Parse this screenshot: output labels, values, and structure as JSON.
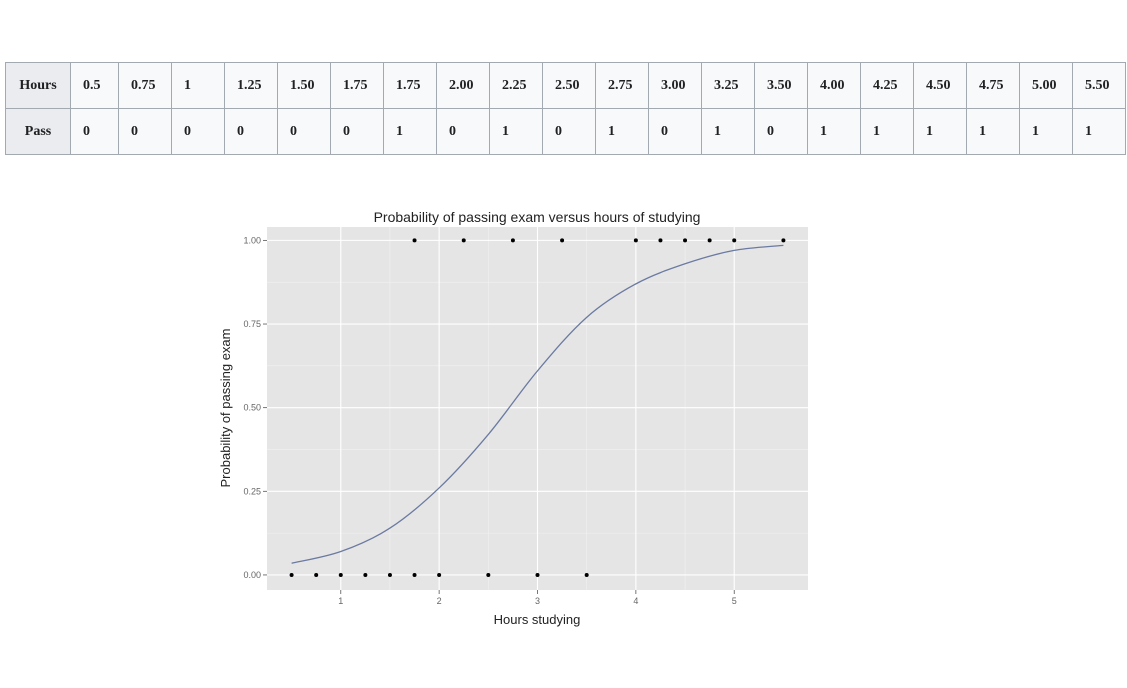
{
  "table": {
    "row_headers": [
      "Hours",
      "Pass"
    ],
    "hours": [
      "0.5",
      "0.75",
      "1",
      "1.25",
      "1.50",
      "1.75",
      "1.75",
      "2.00",
      "2.25",
      "2.50",
      "2.75",
      "3.00",
      "3.25",
      "3.50",
      "4.00",
      "4.25",
      "4.50",
      "4.75",
      "5.00",
      "5.50"
    ],
    "pass": [
      "0",
      "0",
      "0",
      "0",
      "0",
      "0",
      "1",
      "0",
      "1",
      "0",
      "1",
      "0",
      "1",
      "0",
      "1",
      "1",
      "1",
      "1",
      "1",
      "1"
    ]
  },
  "chart_data": {
    "type": "scatter",
    "title": "Probability of passing exam versus hours of studying",
    "xlabel": "Hours studying",
    "ylabel": "Probability of passing exam",
    "xlim": [
      0.25,
      5.75
    ],
    "ylim": [
      -0.045,
      1.04
    ],
    "xticks": [
      1,
      2,
      3,
      4,
      5
    ],
    "xtick_labels": [
      "1",
      "2",
      "3",
      "4",
      "5"
    ],
    "yticks": [
      0,
      0.25,
      0.5,
      0.75,
      1
    ],
    "ytick_labels": [
      "0.00",
      "0.25",
      "0.50",
      "0.75",
      "1.00"
    ],
    "grid": true,
    "colors": {
      "panel": "#e5e5e5",
      "grid_major": "#ffffff",
      "curve": "#6b7aa1",
      "points": "#000000"
    },
    "points": {
      "x": [
        0.5,
        0.75,
        1,
        1.25,
        1.5,
        1.75,
        1.75,
        2,
        2.25,
        2.5,
        2.75,
        3,
        3.25,
        3.5,
        4,
        4.25,
        4.5,
        4.75,
        5,
        5.5
      ],
      "y": [
        0,
        0,
        0,
        0,
        0,
        0,
        1,
        0,
        1,
        0,
        1,
        0,
        1,
        0,
        1,
        1,
        1,
        1,
        1,
        1
      ]
    },
    "fitted_curve": {
      "x": [
        0.5,
        1,
        1.5,
        2,
        2.5,
        3,
        3.5,
        4,
        4.5,
        5,
        5.5
      ],
      "y": [
        0.035,
        0.07,
        0.14,
        0.26,
        0.42,
        0.61,
        0.77,
        0.87,
        0.93,
        0.97,
        0.985
      ]
    }
  }
}
